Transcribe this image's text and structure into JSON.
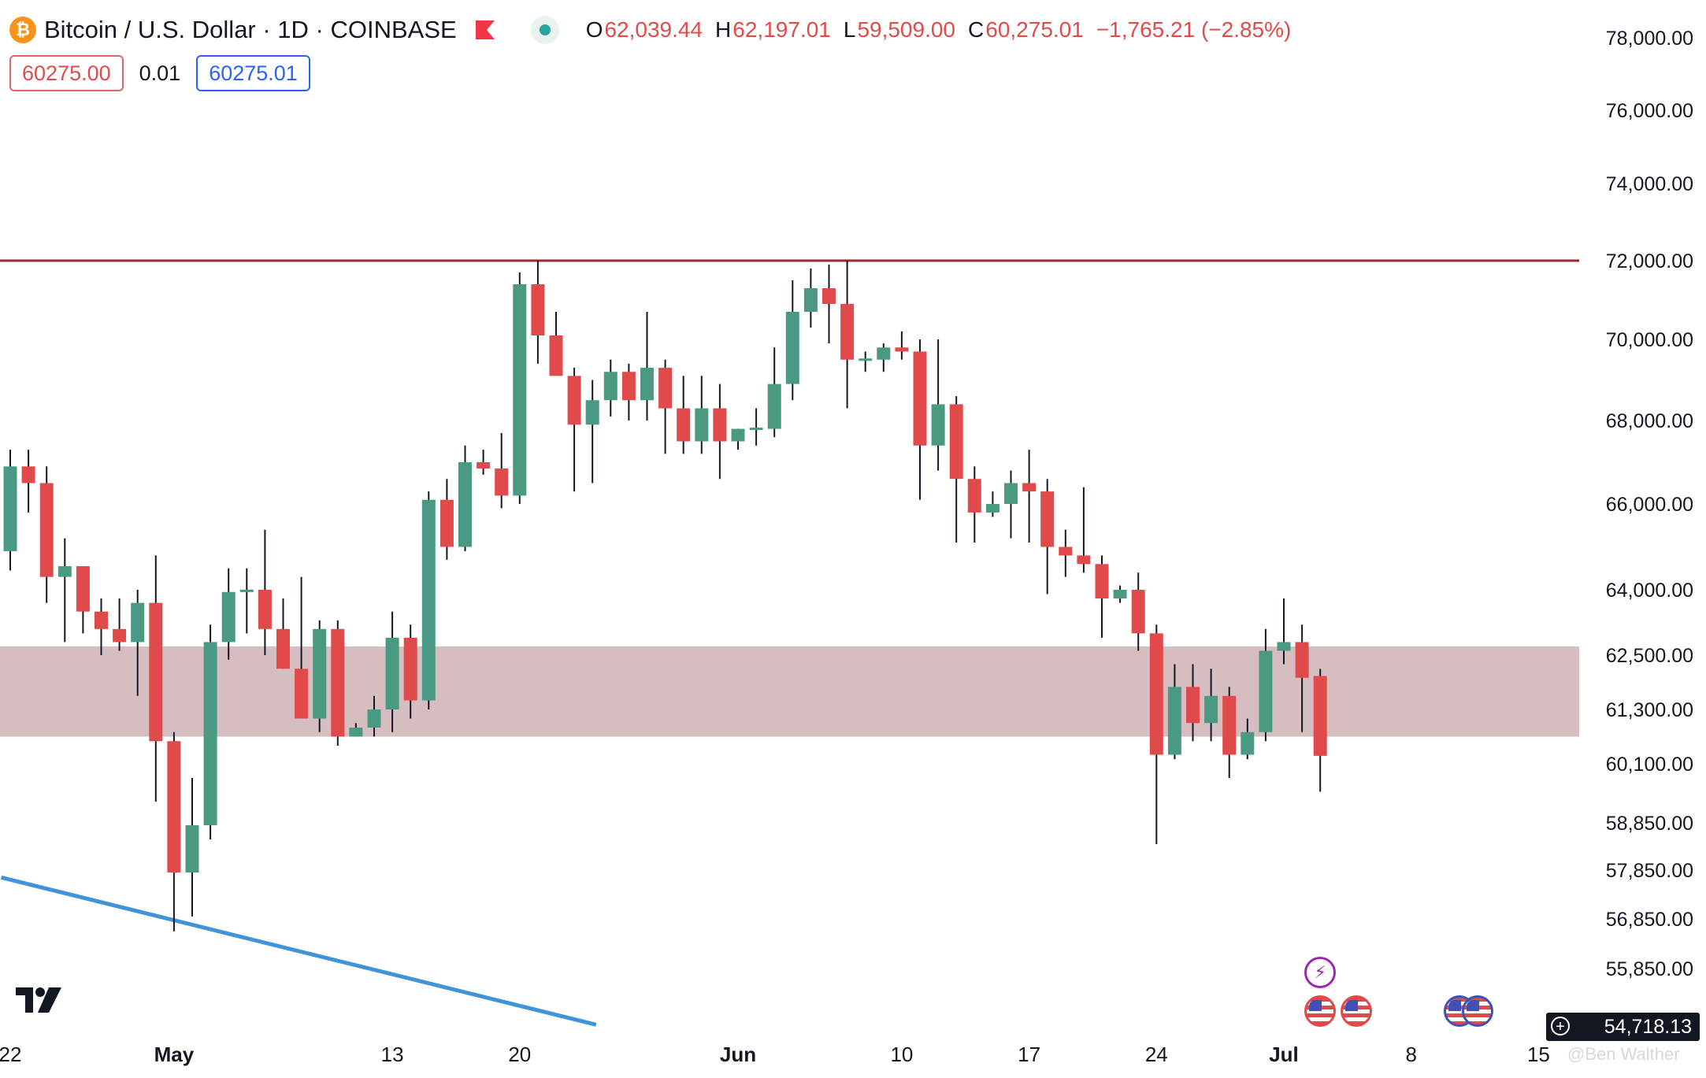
{
  "header": {
    "symbol_title": "Bitcoin / U.S. Dollar · 1D · COINBASE",
    "coin_glyph": "₿",
    "ohlc": {
      "o_label": "O",
      "o_value": "62,039.44",
      "h_label": "H",
      "h_value": "62,197.01",
      "l_label": "L",
      "l_value": "59,509.00",
      "c_label": "C",
      "c_value": "60,275.01",
      "change": "−1,765.21 (−2.85%)"
    },
    "sell_price": "60275.00",
    "spread": "0.01",
    "buy_price": "60275.01"
  },
  "last_price_label": "54,718.13",
  "watermark": "@Ben Walther",
  "colors": {
    "up": "#4a9a83",
    "down": "#e04a4a",
    "resistance": "#9b2a2a",
    "support_zone": "#d3b8bb",
    "trendline": "#3f93d8"
  },
  "chart_data": {
    "type": "candlestick",
    "title": "Bitcoin / U.S. Dollar · 1D · COINBASE",
    "y_ticks": [
      {
        "value": 78000,
        "label": "78,000.00"
      },
      {
        "value": 76000,
        "label": "76,000.00"
      },
      {
        "value": 74000,
        "label": "74,000.00"
      },
      {
        "value": 72000,
        "label": "72,000.00"
      },
      {
        "value": 70000,
        "label": "70,000.00"
      },
      {
        "value": 68000,
        "label": "68,000.00"
      },
      {
        "value": 66000,
        "label": "66,000.00"
      },
      {
        "value": 64000,
        "label": "64,000.00"
      },
      {
        "value": 62500,
        "label": "62,500.00"
      },
      {
        "value": 61300,
        "label": "61,300.00"
      },
      {
        "value": 60100,
        "label": "60,100.00"
      },
      {
        "value": 58850,
        "label": "58,850.00"
      },
      {
        "value": 57850,
        "label": "57,850.00"
      },
      {
        "value": 56850,
        "label": "56,850.00"
      },
      {
        "value": 55850,
        "label": "55,850.00"
      }
    ],
    "x_ticks": [
      {
        "index": 0,
        "label": "22"
      },
      {
        "index": 9,
        "label": "May",
        "bold": true
      },
      {
        "index": 21,
        "label": "13"
      },
      {
        "index": 28,
        "label": "20"
      },
      {
        "index": 40,
        "label": "Jun",
        "bold": true
      },
      {
        "index": 49,
        "label": "10"
      },
      {
        "index": 56,
        "label": "17"
      },
      {
        "index": 63,
        "label": "24"
      },
      {
        "index": 70,
        "label": "Jul",
        "bold": true
      },
      {
        "index": 77,
        "label": "8"
      },
      {
        "index": 84,
        "label": "15"
      }
    ],
    "resistance_level": 72000,
    "support_zone": [
      60700,
      62700
    ],
    "trendline": [
      {
        "index": -0.5,
        "price": 57700
      },
      {
        "index": 32.2,
        "price": 54718
      }
    ],
    "events": [
      {
        "type": "flash",
        "index": 72
      },
      {
        "type": "us-flag",
        "index": 72
      },
      {
        "type": "us-flag",
        "index": 74
      },
      {
        "type": "us-flag",
        "index": 80
      },
      {
        "type": "us-flag",
        "index": 81
      }
    ],
    "candles": [
      {
        "o": 64900,
        "h": 67300,
        "l": 64450,
        "c": 66900
      },
      {
        "o": 66900,
        "h": 67300,
        "l": 65800,
        "c": 66500
      },
      {
        "o": 66500,
        "h": 66900,
        "l": 63700,
        "c": 64300
      },
      {
        "o": 64300,
        "h": 65200,
        "l": 62800,
        "c": 64550
      },
      {
        "o": 64550,
        "h": 64550,
        "l": 63000,
        "c": 63500
      },
      {
        "o": 63500,
        "h": 63800,
        "l": 62500,
        "c": 63100
      },
      {
        "o": 63100,
        "h": 63800,
        "l": 62600,
        "c": 62800
      },
      {
        "o": 62800,
        "h": 64000,
        "l": 61600,
        "c": 63700
      },
      {
        "o": 63700,
        "h": 64800,
        "l": 59300,
        "c": 60600
      },
      {
        "o": 60600,
        "h": 60800,
        "l": 56600,
        "c": 57800
      },
      {
        "o": 57800,
        "h": 59800,
        "l": 56900,
        "c": 58800
      },
      {
        "o": 58800,
        "h": 63200,
        "l": 58500,
        "c": 62800
      },
      {
        "o": 62800,
        "h": 64500,
        "l": 62400,
        "c": 63950
      },
      {
        "o": 63950,
        "h": 64500,
        "l": 63000,
        "c": 64000
      },
      {
        "o": 64000,
        "h": 65400,
        "l": 62500,
        "c": 63100
      },
      {
        "o": 63100,
        "h": 63800,
        "l": 62200,
        "c": 62200
      },
      {
        "o": 62200,
        "h": 64300,
        "l": 61100,
        "c": 61100
      },
      {
        "o": 61100,
        "h": 63300,
        "l": 60800,
        "c": 63100
      },
      {
        "o": 63100,
        "h": 63300,
        "l": 60500,
        "c": 60700
      },
      {
        "o": 60700,
        "h": 61000,
        "l": 60700,
        "c": 60900
      },
      {
        "o": 60900,
        "h": 61600,
        "l": 60700,
        "c": 61300
      },
      {
        "o": 61300,
        "h": 63500,
        "l": 60800,
        "c": 62900
      },
      {
        "o": 62900,
        "h": 63200,
        "l": 61100,
        "c": 61500
      },
      {
        "o": 61500,
        "h": 66300,
        "l": 61300,
        "c": 66100
      },
      {
        "o": 66100,
        "h": 66600,
        "l": 64700,
        "c": 65000
      },
      {
        "o": 65000,
        "h": 67400,
        "l": 64900,
        "c": 67000
      },
      {
        "o": 67000,
        "h": 67300,
        "l": 66700,
        "c": 66850
      },
      {
        "o": 66850,
        "h": 67700,
        "l": 65900,
        "c": 66200
      },
      {
        "o": 66200,
        "h": 71700,
        "l": 66000,
        "c": 71400
      },
      {
        "o": 71400,
        "h": 72000,
        "l": 69400,
        "c": 70100
      },
      {
        "o": 70100,
        "h": 70700,
        "l": 69200,
        "c": 69100
      },
      {
        "o": 69100,
        "h": 69300,
        "l": 66300,
        "c": 67900
      },
      {
        "o": 67900,
        "h": 69000,
        "l": 66500,
        "c": 68500
      },
      {
        "o": 68500,
        "h": 69500,
        "l": 68100,
        "c": 69200
      },
      {
        "o": 69200,
        "h": 69400,
        "l": 68000,
        "c": 68500
      },
      {
        "o": 68500,
        "h": 70700,
        "l": 68000,
        "c": 69300
      },
      {
        "o": 69300,
        "h": 69500,
        "l": 67200,
        "c": 68300
      },
      {
        "o": 68300,
        "h": 69100,
        "l": 67200,
        "c": 67500
      },
      {
        "o": 67500,
        "h": 69100,
        "l": 67200,
        "c": 68300
      },
      {
        "o": 68300,
        "h": 68900,
        "l": 66600,
        "c": 67500
      },
      {
        "o": 67500,
        "h": 67800,
        "l": 67300,
        "c": 67800
      },
      {
        "o": 67800,
        "h": 68300,
        "l": 67400,
        "c": 67800
      },
      {
        "o": 67800,
        "h": 69800,
        "l": 67600,
        "c": 68900
      },
      {
        "o": 68900,
        "h": 71500,
        "l": 68500,
        "c": 70700
      },
      {
        "o": 70700,
        "h": 71800,
        "l": 70300,
        "c": 71300
      },
      {
        "o": 71300,
        "h": 71900,
        "l": 69900,
        "c": 70900
      },
      {
        "o": 70900,
        "h": 72000,
        "l": 68300,
        "c": 69500
      },
      {
        "o": 69500,
        "h": 69700,
        "l": 69200,
        "c": 69500
      },
      {
        "o": 69500,
        "h": 69900,
        "l": 69200,
        "c": 69800
      },
      {
        "o": 69800,
        "h": 70200,
        "l": 69500,
        "c": 69700
      },
      {
        "o": 69700,
        "h": 70000,
        "l": 66100,
        "c": 67400
      },
      {
        "o": 67400,
        "h": 70000,
        "l": 66800,
        "c": 68400
      },
      {
        "o": 68400,
        "h": 68600,
        "l": 65100,
        "c": 66600
      },
      {
        "o": 66600,
        "h": 66900,
        "l": 65100,
        "c": 65800
      },
      {
        "o": 65800,
        "h": 66300,
        "l": 65700,
        "c": 66000
      },
      {
        "o": 66000,
        "h": 66800,
        "l": 65200,
        "c": 66500
      },
      {
        "o": 66500,
        "h": 67300,
        "l": 65100,
        "c": 66300
      },
      {
        "o": 66300,
        "h": 66600,
        "l": 63900,
        "c": 65000
      },
      {
        "o": 65000,
        "h": 65400,
        "l": 64300,
        "c": 64800
      },
      {
        "o": 64800,
        "h": 66400,
        "l": 64400,
        "c": 64600
      },
      {
        "o": 64600,
        "h": 64800,
        "l": 62900,
        "c": 63800
      },
      {
        "o": 63800,
        "h": 64100,
        "l": 63700,
        "c": 64000
      },
      {
        "o": 64000,
        "h": 64400,
        "l": 62600,
        "c": 63000
      },
      {
        "o": 63000,
        "h": 63200,
        "l": 58400,
        "c": 60300
      },
      {
        "o": 60300,
        "h": 62300,
        "l": 60200,
        "c": 61800
      },
      {
        "o": 61800,
        "h": 62300,
        "l": 60600,
        "c": 61000
      },
      {
        "o": 61000,
        "h": 62200,
        "l": 60600,
        "c": 61600
      },
      {
        "o": 61600,
        "h": 61800,
        "l": 59800,
        "c": 60300
      },
      {
        "o": 60300,
        "h": 61100,
        "l": 60200,
        "c": 60800
      },
      {
        "o": 60800,
        "h": 63100,
        "l": 60600,
        "c": 62600
      },
      {
        "o": 62600,
        "h": 63800,
        "l": 62300,
        "c": 62800
      },
      {
        "o": 62800,
        "h": 63200,
        "l": 60800,
        "c": 62000
      },
      {
        "o": 62039.44,
        "h": 62197.01,
        "l": 59509.0,
        "c": 60275.01
      }
    ]
  }
}
